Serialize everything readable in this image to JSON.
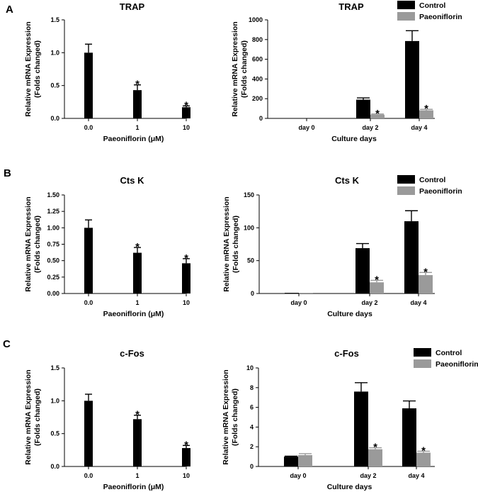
{
  "chart_data": [
    {
      "panel": "A",
      "type": "bar",
      "title": "TRAP",
      "xlabel": "Paeoniflorin (μM)",
      "ylabel": [
        "Relative mRNA Expression",
        "(Folds changed)"
      ],
      "categories": [
        "0.0",
        "1",
        "10"
      ],
      "series": [
        {
          "name": "",
          "color": "#000000",
          "values": [
            1.0,
            0.43,
            0.17
          ],
          "errors": [
            0.13,
            0.08,
            0.02
          ],
          "sig": [
            "",
            "*",
            "*"
          ]
        }
      ],
      "ylim": [
        0,
        1.5
      ],
      "yticks": [
        "0.0",
        "0.5",
        "1.0",
        "1.5"
      ],
      "tickvals": [
        0,
        0.5,
        1.0,
        1.5
      ]
    },
    {
      "panel": "A",
      "type": "bar",
      "title": "TRAP",
      "xlabel": "Culture days",
      "ylabel": [
        "Relative mRNA Expression",
        "(Folds changed)"
      ],
      "categories": [
        "day 0",
        "day 2",
        "day 4"
      ],
      "series": [
        {
          "name": "Control",
          "color": "#000000",
          "values": [
            0,
            190,
            785
          ],
          "errors": [
            0,
            18,
            105
          ],
          "sig": [
            "",
            "",
            ""
          ]
        },
        {
          "name": "Paeoniflorin",
          "color": "#9a9a9a",
          "values": [
            0,
            38,
            82
          ],
          "errors": [
            0,
            6,
            10
          ],
          "sig": [
            "",
            "*",
            "*"
          ]
        }
      ],
      "legend": [
        "Control",
        "Paeoniflorin"
      ],
      "ylim": [
        0,
        1000
      ],
      "yticks": [
        "0",
        "200",
        "400",
        "600",
        "800",
        "1000"
      ],
      "tickvals": [
        0,
        200,
        400,
        600,
        800,
        1000
      ]
    },
    {
      "panel": "B",
      "type": "bar",
      "title": "Cts K",
      "xlabel": "Paeoniflorin (μM)",
      "ylabel": [
        "Relative mRNA Expression",
        "(Folds changed)"
      ],
      "categories": [
        "0.0",
        "1",
        "10"
      ],
      "series": [
        {
          "name": "",
          "color": "#000000",
          "values": [
            1.0,
            0.62,
            0.46
          ],
          "errors": [
            0.12,
            0.08,
            0.07
          ],
          "sig": [
            "",
            "*",
            "*"
          ]
        }
      ],
      "ylim": [
        0,
        1.5
      ],
      "yticks": [
        "0.00",
        "0.25",
        "0.50",
        "0.75",
        "1.00",
        "1.25",
        "1.50"
      ],
      "tickvals": [
        0,
        0.25,
        0.5,
        0.75,
        1.0,
        1.25,
        1.5
      ]
    },
    {
      "panel": "B",
      "type": "bar",
      "title": "Cts K",
      "xlabel": "Culture days",
      "ylabel": [
        "Relative mRNA Expression",
        "(Folds changed)"
      ],
      "categories": [
        "day 0",
        "day 2",
        "day 4"
      ],
      "series": [
        {
          "name": "Control",
          "color": "#000000",
          "values": [
            1,
            69,
            110
          ],
          "errors": [
            0,
            7,
            16
          ],
          "sig": [
            "",
            "",
            ""
          ]
        },
        {
          "name": "Paeoniflorin",
          "color": "#9a9a9a",
          "values": [
            1,
            17,
            28
          ],
          "errors": [
            0,
            3,
            4
          ],
          "sig": [
            "",
            "*",
            "*"
          ]
        }
      ],
      "legend": [
        "Control",
        "Paeoniflorin"
      ],
      "ylim": [
        0,
        150
      ],
      "yticks": [
        "0",
        "50",
        "100",
        "150"
      ],
      "tickvals": [
        0,
        50,
        100,
        150
      ]
    },
    {
      "panel": "C",
      "type": "bar",
      "title": "c-Fos",
      "xlabel": "Paeoniflorin (μM)",
      "ylabel": [
        "Relative mRNA Expression",
        "(Folds changed)"
      ],
      "categories": [
        "0.0",
        "1",
        "10"
      ],
      "series": [
        {
          "name": "",
          "color": "#000000",
          "values": [
            1.0,
            0.72,
            0.28
          ],
          "errors": [
            0.1,
            0.06,
            0.04
          ],
          "sig": [
            "",
            "*",
            "*"
          ]
        }
      ],
      "ylim": [
        0,
        1.5
      ],
      "yticks": [
        "0.0",
        "0.5",
        "1.0",
        "1.5"
      ],
      "tickvals": [
        0,
        0.5,
        1.0,
        1.5
      ]
    },
    {
      "panel": "C",
      "type": "bar",
      "title": "c-Fos",
      "xlabel": "Culture days",
      "ylabel": [
        "Relative mRNA Expression",
        "(Folds changed)"
      ],
      "categories": [
        "day 0",
        "day 2",
        "day 4"
      ],
      "series": [
        {
          "name": "Control",
          "color": "#000000",
          "values": [
            1.0,
            7.6,
            5.9
          ],
          "errors": [
            0.05,
            0.9,
            0.75
          ],
          "sig": [
            "",
            "",
            ""
          ]
        },
        {
          "name": "Paeoniflorin",
          "color": "#9a9a9a",
          "values": [
            1.15,
            1.75,
            1.4
          ],
          "errors": [
            0.15,
            0.15,
            0.15
          ],
          "sig": [
            "",
            "*",
            "*"
          ]
        }
      ],
      "legend": [
        "Control",
        "Paeoniflorin"
      ],
      "ylim": [
        0,
        10
      ],
      "yticks": [
        "0",
        "2",
        "4",
        "6",
        "8",
        "10"
      ],
      "tickvals": [
        0,
        2,
        4,
        6,
        8,
        10
      ]
    }
  ]
}
